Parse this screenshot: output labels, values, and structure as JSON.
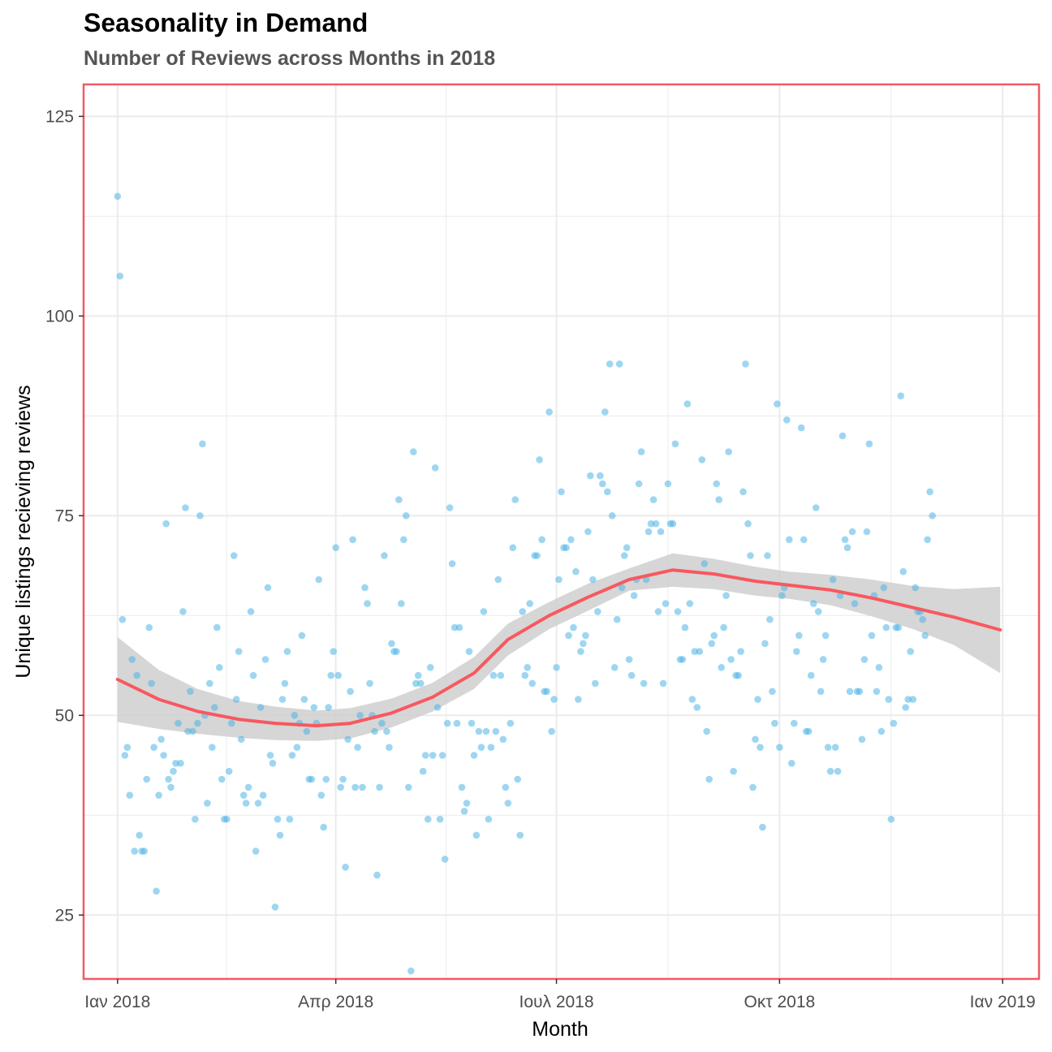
{
  "title": "Seasonality in Demand",
  "subtitle": "Number of Reviews across Months in 2018",
  "colors": {
    "points": "#4fb4e6",
    "smooth": "#f8585f",
    "ribbon": "#cfcfcf",
    "border": "#f05a64",
    "grid": "#ebebeb"
  },
  "chart_data": {
    "type": "scatter",
    "xlabel": "Month",
    "ylabel": "Unique listings recieving reviews",
    "x_ticks": [
      "Ιαν 2018",
      "Απρ 2018",
      "Ιουλ 2018",
      "Οκτ 2018",
      "Ιαν 2019"
    ],
    "x_tick_dates": [
      "2018-01-01",
      "2018-04-01",
      "2018-07-01",
      "2018-10-01",
      "2019-01-01"
    ],
    "y_ticks": [
      25,
      50,
      75,
      100,
      125
    ],
    "xlim": [
      "2017-12-18",
      "2019-01-16"
    ],
    "ylim": [
      17,
      129
    ],
    "grid": true,
    "series": [
      {
        "kind": "points",
        "x_start": "2018-01-01",
        "step": "1 day",
        "values": [
          115,
          105,
          62,
          45,
          46,
          40,
          57,
          33,
          55,
          35,
          33,
          33,
          42,
          61,
          54,
          46,
          28,
          40,
          47,
          45,
          74,
          42,
          41,
          43,
          44,
          49,
          44,
          63,
          76,
          48,
          53,
          48,
          37,
          49,
          75,
          84,
          50,
          39,
          54,
          46,
          51,
          61,
          56,
          42,
          37,
          37,
          43,
          49,
          70,
          52,
          58,
          47,
          40,
          39,
          41,
          63,
          55,
          33,
          39,
          51,
          40,
          57,
          66,
          45,
          44,
          26,
          37,
          35,
          52,
          54,
          58,
          37,
          45,
          50,
          46,
          49,
          60,
          52,
          48,
          42,
          42,
          51,
          49,
          67,
          40,
          36,
          42,
          51,
          55,
          58,
          71,
          55,
          41,
          42,
          31,
          47,
          53,
          72,
          41,
          46,
          50,
          41,
          66,
          64,
          54,
          50,
          48,
          30,
          41,
          49,
          70,
          48,
          46,
          59,
          58,
          58,
          77,
          64,
          72,
          75,
          41,
          18,
          83,
          54,
          55,
          54,
          43,
          45,
          37,
          56,
          45,
          81,
          51,
          37,
          45,
          32,
          49,
          76,
          69,
          61,
          49,
          61,
          41,
          38,
          39,
          58,
          49,
          45,
          35,
          48,
          46,
          63,
          48,
          37,
          46,
          55,
          48,
          67,
          55,
          47,
          41,
          39,
          49,
          71,
          77,
          42,
          35,
          63,
          55,
          56,
          64,
          54,
          70,
          70,
          82,
          72,
          53,
          53,
          88,
          48,
          52,
          56,
          67,
          78,
          71,
          71,
          60,
          72,
          61,
          68,
          52,
          58,
          59,
          60,
          73,
          80,
          67,
          54,
          63,
          80,
          79,
          88,
          78,
          94,
          75,
          56,
          62,
          94,
          66,
          70,
          71,
          57,
          55,
          65,
          67,
          79,
          83,
          54,
          67,
          73,
          74,
          77,
          74,
          63,
          73,
          54,
          64,
          79,
          74,
          74,
          84,
          63,
          57,
          57,
          61,
          89,
          64,
          52,
          58,
          51,
          58,
          82,
          69,
          48,
          42,
          59,
          60,
          79,
          77,
          56,
          61,
          65,
          83,
          57,
          43,
          55,
          55,
          58,
          78,
          94,
          74,
          70,
          41,
          47,
          52,
          46,
          36,
          59,
          70,
          62,
          53,
          49,
          89,
          46,
          65,
          66,
          87,
          72,
          44,
          49,
          58,
          60,
          86,
          72,
          48,
          48,
          55,
          64,
          76,
          63,
          53,
          57,
          60,
          46,
          43,
          67,
          46,
          43,
          65,
          85,
          72,
          71,
          53,
          73,
          64,
          53,
          53,
          47,
          57,
          73,
          84,
          60,
          65,
          53,
          56,
          48,
          66,
          61,
          52,
          37,
          49,
          61,
          61,
          90,
          68,
          51,
          52,
          58,
          52,
          66,
          63,
          63,
          62,
          60,
          72,
          78,
          75
        ]
      },
      {
        "kind": "loess_fit",
        "x": [
          "2018-01-01",
          "2018-01-18",
          "2018-02-03",
          "2018-02-20",
          "2018-03-07",
          "2018-03-24",
          "2018-04-07",
          "2018-04-24",
          "2018-05-11",
          "2018-05-28",
          "2018-06-11",
          "2018-06-28",
          "2018-07-14",
          "2018-07-31",
          "2018-08-18",
          "2018-09-04",
          "2018-09-21",
          "2018-10-05",
          "2018-10-22",
          "2018-11-08",
          "2018-11-25",
          "2018-12-12",
          "2018-12-31"
        ],
        "y": [
          54.5,
          52,
          50.5,
          49.5,
          49,
          48.7,
          49,
          50.3,
          52.3,
          55.3,
          59.5,
          62.5,
          64.8,
          67,
          68.2,
          67.7,
          66.8,
          66.3,
          65.7,
          64.7,
          63.5,
          62.3,
          60.7
        ],
        "ci_lower": [
          49.2,
          48.3,
          47.7,
          47.2,
          46.9,
          46.8,
          47.1,
          48.5,
          50.5,
          53.3,
          57.5,
          60.8,
          63.1,
          65.6,
          66.1,
          65.8,
          65.0,
          64.6,
          63.8,
          62.4,
          60.8,
          58.8,
          55.3
        ],
        "ci_upper": [
          59.8,
          55.7,
          53.3,
          51.8,
          51.1,
          50.6,
          50.9,
          52.1,
          54.1,
          57.3,
          61.5,
          64.2,
          66.5,
          68.4,
          70.3,
          69.6,
          68.6,
          68.0,
          67.6,
          67.0,
          66.2,
          65.8,
          66.1
        ]
      }
    ]
  }
}
